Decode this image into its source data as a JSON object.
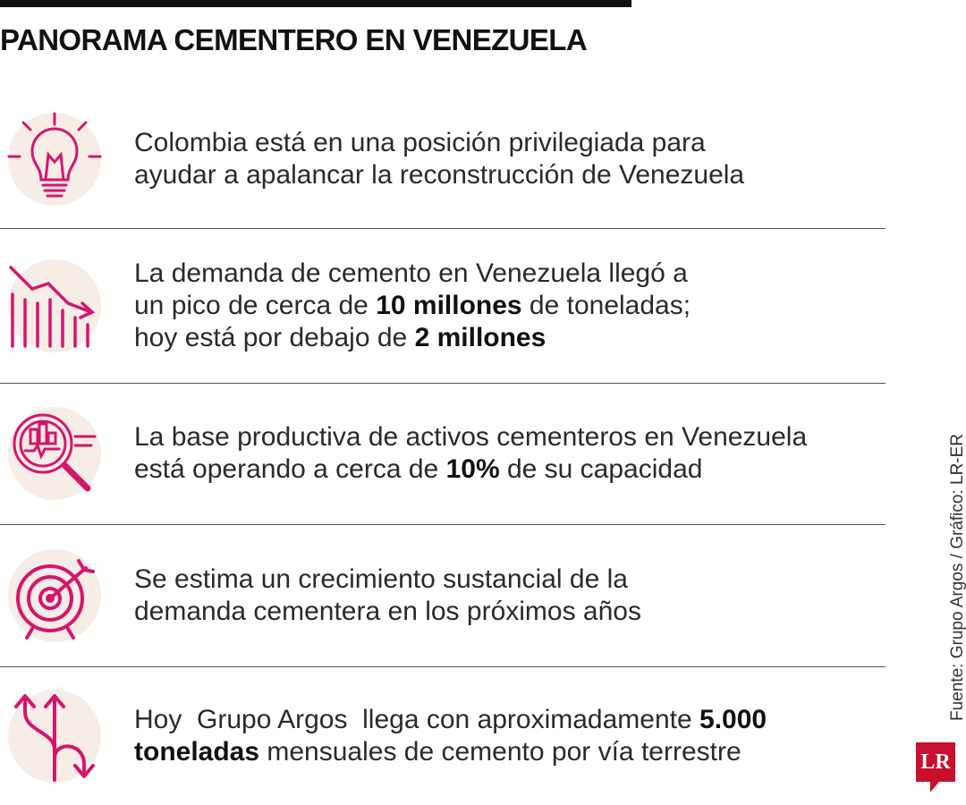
{
  "header": {
    "title": "PANORAMA CEMENTERO EN VENEZUELA"
  },
  "items": [
    {
      "lines": [
        [
          {
            "text": "Colombia está en una posición privilegiada para",
            "bold": false
          }
        ],
        [
          {
            "text": "ayudar a apalancar la reconstrucción de Venezuela",
            "bold": false
          }
        ]
      ]
    },
    {
      "lines": [
        [
          {
            "text": "La demanda de cemento en Venezuela llegó a",
            "bold": false
          }
        ],
        [
          {
            "text": "un pico de cerca de ",
            "bold": false
          },
          {
            "text": "10 millones",
            "bold": true
          },
          {
            "text": " de toneladas;",
            "bold": false
          }
        ],
        [
          {
            "text": "hoy está por debajo de ",
            "bold": false
          },
          {
            "text": "2 millones",
            "bold": true
          }
        ]
      ]
    },
    {
      "lines": [
        [
          {
            "text": "La base productiva de activos cementeros en Venezuela",
            "bold": false
          }
        ],
        [
          {
            "text": "está operando a cerca de ",
            "bold": false
          },
          {
            "text": "10%",
            "bold": true
          },
          {
            "text": " de su capacidad",
            "bold": false
          }
        ]
      ]
    },
    {
      "lines": [
        [
          {
            "text": "Se estima un crecimiento sustancial de la",
            "bold": false
          }
        ],
        [
          {
            "text": "demanda cementera en los próximos años",
            "bold": false
          }
        ]
      ]
    },
    {
      "lines": [
        [
          {
            "text": "Hoy  Grupo Argos  llega con aproximadamente ",
            "bold": false
          },
          {
            "text": "5.000",
            "bold": true
          }
        ],
        [
          {
            "text": "toneladas",
            "bold": true
          },
          {
            "text": " mensuales de cemento por vía terrestre",
            "bold": false
          }
        ]
      ]
    }
  ],
  "footer": {
    "source": "Fuente: Grupo Argos / Gráfico: LR-ER",
    "logo": "LR"
  }
}
